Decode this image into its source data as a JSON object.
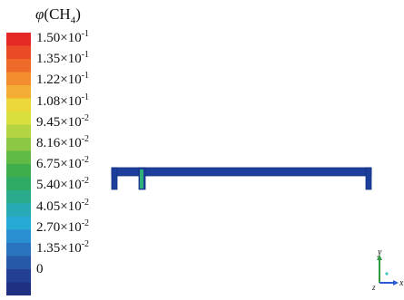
{
  "legend": {
    "title_symbol": "φ",
    "title_open": "(CH",
    "title_sub": "4",
    "title_close": ")",
    "ticks": [
      {
        "mantissa": "1.50×10",
        "exponent": "-1"
      },
      {
        "mantissa": "1.35×10",
        "exponent": "-1"
      },
      {
        "mantissa": "1.22×10",
        "exponent": "-1"
      },
      {
        "mantissa": "1.08×10",
        "exponent": "-1"
      },
      {
        "mantissa": "9.45×10",
        "exponent": "-2"
      },
      {
        "mantissa": "8.16×10",
        "exponent": "-2"
      },
      {
        "mantissa": "6.75×10",
        "exponent": "-2"
      },
      {
        "mantissa": "5.40×10",
        "exponent": "-2"
      },
      {
        "mantissa": "4.05×10",
        "exponent": "-2"
      },
      {
        "mantissa": "2.70×10",
        "exponent": "-2"
      },
      {
        "mantissa": "1.35×10",
        "exponent": "-2"
      },
      {
        "mantissa": "0",
        "exponent": ""
      }
    ],
    "colors_top_to_bottom": [
      "#e42a24",
      "#eb4a26",
      "#ee6a29",
      "#f28c2e",
      "#f4ad34",
      "#eed73a",
      "#d9e03e",
      "#b4d541",
      "#8cc843",
      "#5fba46",
      "#3eae4d",
      "#2faa64",
      "#29ab8c",
      "#27aab5",
      "#26a9d5",
      "#2a8fd0",
      "#2a74bd",
      "#2659a8",
      "#233f94",
      "#1f2f82"
    ]
  },
  "domain_colors": {
    "channel": "#1d3f9c",
    "outline": "#142f82",
    "plume": "#2fb07a"
  },
  "axes": {
    "y_label": "y",
    "x_label": "x",
    "z_label": "z",
    "y_color": "#2f9a3f",
    "x_color": "#2a5bd6",
    "z_color": "#3ec4c4"
  }
}
